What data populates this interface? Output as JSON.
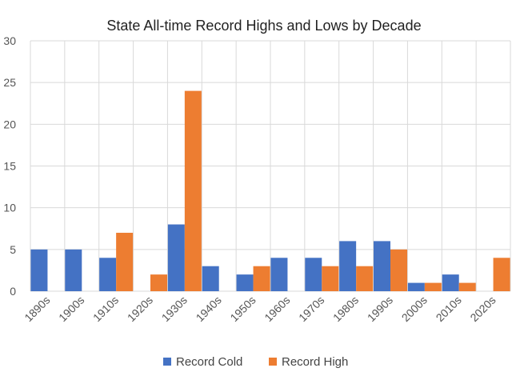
{
  "chart_data": {
    "type": "bar",
    "title": "State All-time Record Highs and Lows by Decade",
    "xlabel": "",
    "ylabel": "",
    "categories": [
      "1890s",
      "1900s",
      "1910s",
      "1920s",
      "1930s",
      "1940s",
      "1950s",
      "1960s",
      "1970s",
      "1980s",
      "1990s",
      "2000s",
      "2010s",
      "2020s"
    ],
    "series": [
      {
        "name": "Record Cold",
        "color": "#4472C4",
        "values": [
          5,
          5,
          4,
          0,
          8,
          3,
          2,
          4,
          4,
          6,
          6,
          1,
          2,
          0
        ]
      },
      {
        "name": "Record High",
        "color": "#ED7D31",
        "values": [
          0,
          0,
          7,
          2,
          24,
          0,
          3,
          0,
          3,
          3,
          5,
          1,
          1,
          4
        ]
      }
    ],
    "ylim": [
      0,
      30
    ],
    "yticks": [
      0,
      5,
      10,
      15,
      20,
      25,
      30
    ],
    "grid": true,
    "legend_position": "bottom"
  }
}
